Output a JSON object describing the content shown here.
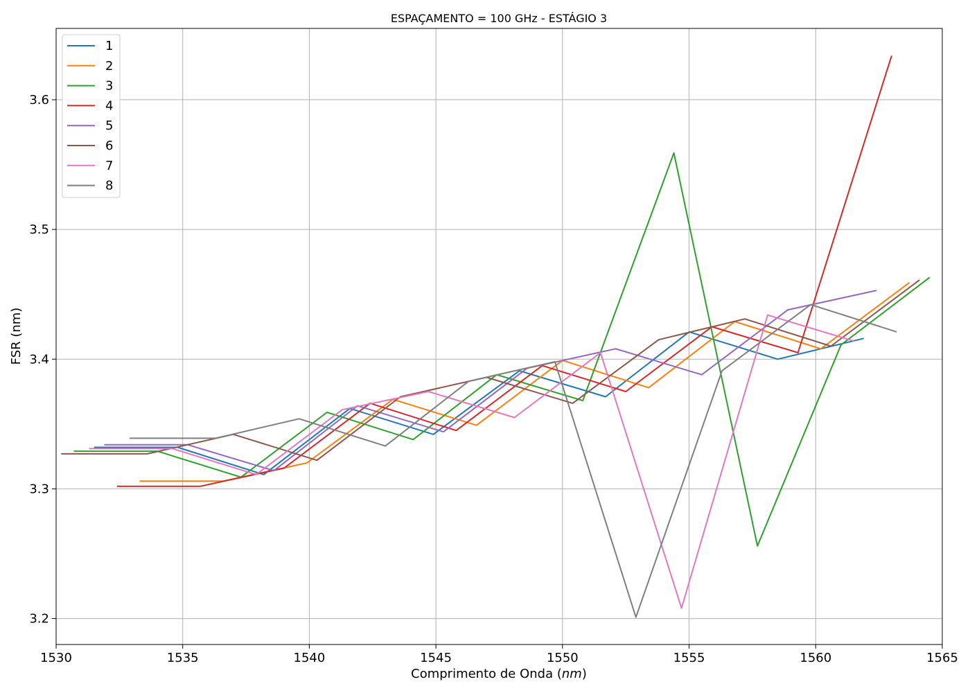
{
  "chart_data": {
    "type": "line",
    "title": "ESPAÇAMENTO = 100 GHz - ESTÁGIO 3",
    "xlabel_main": "Comprimento de Onda (",
    "xlabel_unit": "nm",
    "xlabel_close": ")",
    "ylabel": "FSR (nm)",
    "xlim": [
      1530,
      1565
    ],
    "ylim": [
      3.18,
      3.655
    ],
    "xticks": [
      1530,
      1535,
      1540,
      1545,
      1550,
      1555,
      1560,
      1565
    ],
    "xtick_labels": [
      "1530",
      "1535",
      "1540",
      "1545",
      "1550",
      "1555",
      "1560",
      "1565"
    ],
    "yticks": [
      3.2,
      3.3,
      3.4,
      3.5,
      3.6
    ],
    "ytick_labels": [
      "3.2",
      "3.3",
      "3.4",
      "3.5",
      "3.6"
    ],
    "grid": true,
    "legend_position": "top-left",
    "series": [
      {
        "name": "1",
        "color": "#1f77b4",
        "x": [
          1531.5,
          1534.8,
          1538.2,
          1541.6,
          1544.9,
          1548.3,
          1551.7,
          1555.0,
          1558.5,
          1561.9
        ],
        "y": [
          3.332,
          3.332,
          3.311,
          3.362,
          3.342,
          3.391,
          3.371,
          3.421,
          3.4,
          3.416
        ]
      },
      {
        "name": "2",
        "color": "#ff7f0e",
        "x": [
          1533.3,
          1536.6,
          1539.9,
          1543.3,
          1546.6,
          1550.0,
          1553.4,
          1556.8,
          1560.2,
          1563.7
        ],
        "y": [
          3.306,
          3.306,
          3.32,
          3.369,
          3.349,
          3.399,
          3.378,
          3.429,
          3.408,
          3.459
        ]
      },
      {
        "name": "3",
        "color": "#2ca02c",
        "x": [
          1530.7,
          1534.0,
          1537.3,
          1540.7,
          1544.1,
          1547.4,
          1550.8,
          1554.4,
          1557.7,
          1561.0,
          1564.5
        ],
        "y": [
          3.329,
          3.329,
          3.309,
          3.359,
          3.338,
          3.388,
          3.368,
          3.559,
          3.256,
          3.411,
          3.463
        ]
      },
      {
        "name": "4",
        "color": "#d62728",
        "x": [
          1532.4,
          1535.7,
          1539.0,
          1542.4,
          1545.8,
          1549.2,
          1552.5,
          1555.9,
          1559.3,
          1563.0
        ],
        "y": [
          3.302,
          3.302,
          3.316,
          3.366,
          3.345,
          3.395,
          3.375,
          3.425,
          3.405,
          3.634
        ]
      },
      {
        "name": "5",
        "color": "#9467bd",
        "x": [
          1531.9,
          1535.2,
          1538.6,
          1541.9,
          1545.3,
          1548.6,
          1552.1,
          1555.5,
          1558.9,
          1562.4
        ],
        "y": [
          3.334,
          3.334,
          3.314,
          3.364,
          3.344,
          3.393,
          3.408,
          3.388,
          3.438,
          3.453
        ]
      },
      {
        "name": "6",
        "color": "#8c564b",
        "x": [
          1530.2,
          1533.6,
          1537.0,
          1540.3,
          1543.6,
          1547.0,
          1550.4,
          1553.8,
          1557.2,
          1560.6,
          1564.1
        ],
        "y": [
          3.327,
          3.327,
          3.342,
          3.322,
          3.371,
          3.386,
          3.366,
          3.415,
          3.431,
          3.41,
          3.461
        ]
      },
      {
        "name": "7",
        "color": "#e377c2",
        "x": [
          1531.3,
          1534.6,
          1537.9,
          1541.3,
          1544.7,
          1548.1,
          1551.5,
          1554.7,
          1558.1,
          1561.5
        ],
        "y": [
          3.331,
          3.331,
          3.311,
          3.361,
          3.375,
          3.355,
          3.405,
          3.208,
          3.434,
          3.414
        ]
      },
      {
        "name": "8",
        "color": "#7f7f7f",
        "x": [
          1532.9,
          1536.3,
          1539.6,
          1543.0,
          1546.3,
          1549.7,
          1552.9,
          1556.3,
          1559.8,
          1563.2
        ],
        "y": [
          3.339,
          3.339,
          3.354,
          3.333,
          3.383,
          3.398,
          3.201,
          3.391,
          3.442,
          3.421
        ]
      }
    ]
  }
}
